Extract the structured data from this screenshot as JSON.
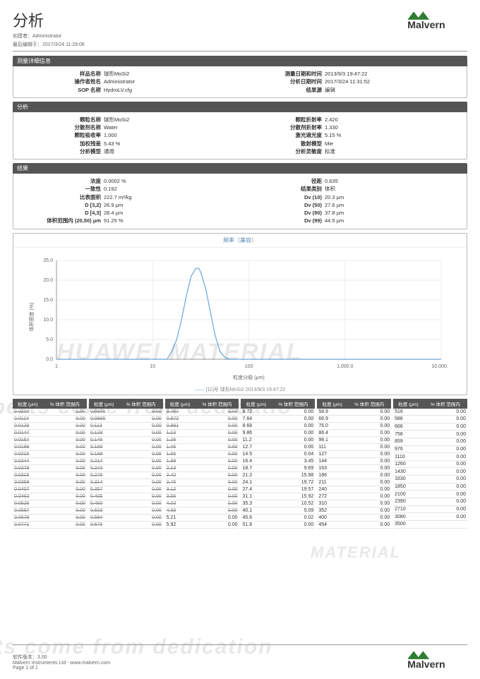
{
  "header": {
    "title": "分析",
    "creator_label": "创建者：",
    "creator": "Administrator",
    "edited_label": "最后编辑于：",
    "edited": "2017/3/24 11:28:08"
  },
  "logo_text": "Malvern",
  "sections": {
    "measure": {
      "title": "测量详细信息",
      "left": [
        {
          "k": "样品名称",
          "v": "球形MoSi2"
        },
        {
          "k": "操作者姓名",
          "v": "Administrator"
        },
        {
          "k": "SOP 名称",
          "v": "HydroLV.cfg"
        }
      ],
      "right": [
        {
          "k": "测量日期和时间",
          "v": "2013/9/3 19:47:22"
        },
        {
          "k": "分析日期时间",
          "v": "2017/3/24 11:31:52"
        },
        {
          "k": "结果源",
          "v": "编辑"
        }
      ]
    },
    "analysis": {
      "title": "分析",
      "left": [
        {
          "k": "颗粒名称",
          "v": "球形MoSi2"
        },
        {
          "k": "分散剂名称",
          "v": "Water"
        },
        {
          "k": "颗粒吸收率",
          "v": "1.000"
        },
        {
          "k": "加权残差",
          "v": "5.43 %"
        },
        {
          "k": "分析模型",
          "v": "通用"
        }
      ],
      "right": [
        {
          "k": "颗粒折射率",
          "v": "2.420"
        },
        {
          "k": "分散剂折射率",
          "v": "1.330"
        },
        {
          "k": "激光遮光度",
          "v": "5.15 %"
        },
        {
          "k": "散射模型",
          "v": "Mie"
        },
        {
          "k": "分析灵敏度",
          "v": "标准"
        }
      ]
    },
    "result": {
      "title": "结果",
      "left": [
        {
          "k": "浓度",
          "v": "0.0002 %"
        },
        {
          "k": "一致性",
          "v": "0.192"
        },
        {
          "k": "比表面积",
          "v": "222.7 m²/kg"
        },
        {
          "k": "D [3,2]",
          "v": "26.9 μm"
        },
        {
          "k": "D [4,3]",
          "v": "28.4 μm"
        },
        {
          "k": "体积范围内 (20,50) μm",
          "v": "91.25 %"
        }
      ],
      "right": [
        {
          "k": "径距",
          "v": "0.635"
        },
        {
          "k": "结果类别",
          "v": "体积"
        },
        {
          "k": "Dv (10)",
          "v": "20.3 μm"
        },
        {
          "k": "Dv (50)",
          "v": "27.6 μm"
        },
        {
          "k": "Dv (90)",
          "v": "37.8 μm"
        },
        {
          "k": "Dv (99)",
          "v": "44.5 μm"
        }
      ]
    }
  },
  "chart": {
    "title": "频率（兼容）",
    "legend": "[11]号 球形MoSi2-2013/9/3 19:47:22",
    "ylabel": "体积密度 (%)",
    "xlabel": "粒度分级 (μm)",
    "ylim": [
      0,
      25
    ],
    "ytick_step": 5,
    "xticks": [
      1.0,
      10.0,
      100.0,
      "1,000.0",
      "10,000.0"
    ],
    "curve_color": "#6ba5d8",
    "background": "#ffffff",
    "grid_color": "#dddddd",
    "points_logx_y": [
      [
        0.0,
        0
      ],
      [
        1.0,
        0
      ],
      [
        1.15,
        0
      ],
      [
        1.2,
        2
      ],
      [
        1.25,
        5
      ],
      [
        1.3,
        10
      ],
      [
        1.35,
        16
      ],
      [
        1.4,
        21
      ],
      [
        1.45,
        23
      ],
      [
        1.48,
        23
      ],
      [
        1.5,
        22
      ],
      [
        1.55,
        18
      ],
      [
        1.6,
        12
      ],
      [
        1.65,
        6
      ],
      [
        1.7,
        2
      ],
      [
        1.75,
        0.5
      ],
      [
        1.8,
        0
      ],
      [
        4.0,
        0
      ]
    ]
  },
  "table_headers": [
    "粒度 (μm)",
    "% 体积 范围内"
  ],
  "tables": [
    [
      {
        "s": "0.0100",
        "v": "0.00",
        "strike": true
      },
      {
        "s": "0.0114",
        "v": "0.00",
        "strike": true
      },
      {
        "s": "0.0129",
        "v": "0.00",
        "strike": true
      },
      {
        "s": "0.0147",
        "v": "0.00",
        "strike": true
      },
      {
        "s": "0.0167",
        "v": "0.00",
        "strike": true
      },
      {
        "s": "0.0189",
        "v": "0.00",
        "strike": true
      },
      {
        "s": "0.0215",
        "v": "0.00",
        "strike": true
      },
      {
        "s": "0.0244",
        "v": "0.00",
        "strike": true
      },
      {
        "s": "0.0278",
        "v": "0.00",
        "strike": true
      },
      {
        "s": "0.0315",
        "v": "0.00",
        "strike": true
      },
      {
        "s": "0.0358",
        "v": "0.00",
        "strike": true
      },
      {
        "s": "0.0407",
        "v": "0.00",
        "strike": true
      },
      {
        "s": "0.0463",
        "v": "0.00",
        "strike": true
      },
      {
        "s": "0.0526",
        "v": "0.00",
        "strike": true
      },
      {
        "s": "0.0597",
        "v": "0.00",
        "strike": true
      },
      {
        "s": "0.0679",
        "v": "0.00",
        "strike": true
      },
      {
        "s": "0.0771",
        "v": "0.00",
        "strike": true
      }
    ],
    [
      {
        "s": "0.0876",
        "v": "0.00",
        "strike": true
      },
      {
        "s": "0.0995",
        "v": "0.00",
        "strike": true
      },
      {
        "s": "0.113",
        "v": "0.00",
        "strike": true
      },
      {
        "s": "0.128",
        "v": "0.00",
        "strike": true
      },
      {
        "s": "0.146",
        "v": "0.00",
        "strike": true
      },
      {
        "s": "0.166",
        "v": "0.00",
        "strike": true
      },
      {
        "s": "0.188",
        "v": "0.00",
        "strike": true
      },
      {
        "s": "0.214",
        "v": "0.00",
        "strike": true
      },
      {
        "s": "0.243",
        "v": "0.00",
        "strike": true
      },
      {
        "s": "0.276",
        "v": "0.00",
        "strike": true
      },
      {
        "s": "0.314",
        "v": "0.00",
        "strike": true
      },
      {
        "s": "0.357",
        "v": "0.00",
        "strike": true
      },
      {
        "s": "0.405",
        "v": "0.00",
        "strike": true
      },
      {
        "s": "0.460",
        "v": "0.00",
        "strike": true
      },
      {
        "s": "0.523",
        "v": "0.00",
        "strike": true
      },
      {
        "s": "0.594",
        "v": "0.00",
        "strike": true
      },
      {
        "s": "0.675",
        "v": "0.00",
        "strike": true
      }
    ],
    [
      {
        "s": "0.767",
        "v": "0.00",
        "strike": true
      },
      {
        "s": "0.872",
        "v": "0.00",
        "strike": true
      },
      {
        "s": "0.991",
        "v": "0.00",
        "strike": true
      },
      {
        "s": "1.13",
        "v": "0.00",
        "strike": true
      },
      {
        "s": "1.28",
        "v": "0.00",
        "strike": true
      },
      {
        "s": "1.45",
        "v": "0.00",
        "strike": true
      },
      {
        "s": "1.65",
        "v": "0.00",
        "strike": true
      },
      {
        "s": "1.88",
        "v": "0.00",
        "strike": true
      },
      {
        "s": "2.13",
        "v": "0.00",
        "strike": true
      },
      {
        "s": "2.42",
        "v": "0.00",
        "strike": true
      },
      {
        "s": "2.75",
        "v": "0.00",
        "strike": true
      },
      {
        "s": "3.12",
        "v": "0.00",
        "strike": true
      },
      {
        "s": "3.55",
        "v": "0.00",
        "strike": true
      },
      {
        "s": "4.03",
        "v": "0.00",
        "strike": true
      },
      {
        "s": "4.58",
        "v": "0.00",
        "strike": true
      },
      {
        "s": "5.21",
        "v": "0.00",
        "strike": false
      },
      {
        "s": "5.92",
        "v": "0.00",
        "strike": false
      }
    ],
    [
      {
        "s": "6.72",
        "v": "0.00"
      },
      {
        "s": "7.64",
        "v": "0.00"
      },
      {
        "s": "8.68",
        "v": "0.00"
      },
      {
        "s": "9.86",
        "v": "0.00"
      },
      {
        "s": "11.2",
        "v": "0.00"
      },
      {
        "s": "12.7",
        "v": "0.00"
      },
      {
        "s": "14.5",
        "v": "0.04"
      },
      {
        "s": "16.4",
        "v": "3.45"
      },
      {
        "s": "18.7",
        "v": "9.69"
      },
      {
        "s": "21.2",
        "v": "15.98"
      },
      {
        "s": "24.1",
        "v": "19.72"
      },
      {
        "s": "27.4",
        "v": "19.57"
      },
      {
        "s": "31.1",
        "v": "15.92"
      },
      {
        "s": "35.3",
        "v": "10.52"
      },
      {
        "s": "40.1",
        "v": "5.09"
      },
      {
        "s": "45.6",
        "v": "0.02"
      },
      {
        "s": "51.8",
        "v": "0.00"
      }
    ],
    [
      {
        "s": "58.9",
        "v": "0.00"
      },
      {
        "s": "66.9",
        "v": "0.00"
      },
      {
        "s": "76.0",
        "v": "0.00"
      },
      {
        "s": "86.4",
        "v": "0.00"
      },
      {
        "s": "98.1",
        "v": "0.00"
      },
      {
        "s": "111",
        "v": "0.00"
      },
      {
        "s": "127",
        "v": "0.00"
      },
      {
        "s": "144",
        "v": "0.00"
      },
      {
        "s": "163",
        "v": "0.00"
      },
      {
        "s": "186",
        "v": "0.00"
      },
      {
        "s": "211",
        "v": "0.00"
      },
      {
        "s": "240",
        "v": "0.00"
      },
      {
        "s": "272",
        "v": "0.00"
      },
      {
        "s": "310",
        "v": "0.00"
      },
      {
        "s": "352",
        "v": "0.00"
      },
      {
        "s": "400",
        "v": "0.00"
      },
      {
        "s": "454",
        "v": "0.00"
      }
    ],
    [
      {
        "s": "516",
        "v": "0.00"
      },
      {
        "s": "586",
        "v": "0.00"
      },
      {
        "s": "666",
        "v": "0.00"
      },
      {
        "s": "756",
        "v": "0.00"
      },
      {
        "s": "859",
        "v": "0.00"
      },
      {
        "s": "976",
        "v": "0.00"
      },
      {
        "s": "1110",
        "v": "0.00"
      },
      {
        "s": "1260",
        "v": "0.00"
      },
      {
        "s": "1430",
        "v": "0.00"
      },
      {
        "s": "1630",
        "v": "0.00"
      },
      {
        "s": "1850",
        "v": "0.00"
      },
      {
        "s": "2100",
        "v": "0.00"
      },
      {
        "s": "2390",
        "v": "0.00"
      },
      {
        "s": "2710",
        "v": "0.00"
      },
      {
        "s": "3080",
        "v": "0.00"
      },
      {
        "s": "3500",
        "v": "",
        "strike": false
      }
    ]
  ],
  "footer": {
    "version_label": "软件版本：",
    "version": "3.00",
    "company": "Malvern Instruments Ltd - www.malvern.com",
    "page": "Page 1 of 1"
  }
}
